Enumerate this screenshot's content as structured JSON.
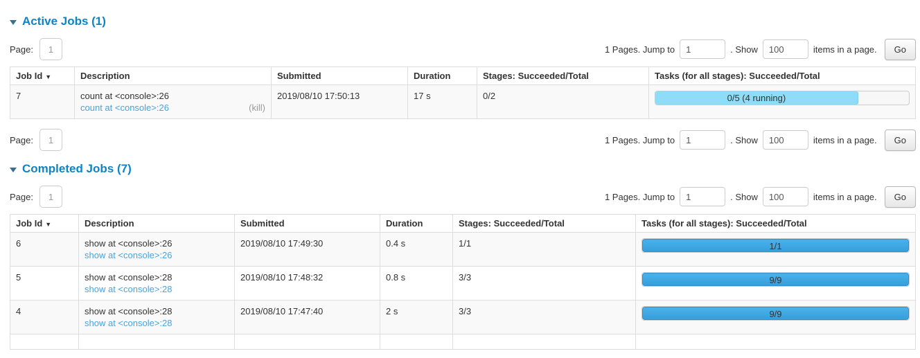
{
  "colors": {
    "section_title_blue": "#0b85c8",
    "link_blue": "#4ba3dc",
    "completed_bar_blue": "#3fa6e0",
    "running_bar_light_blue": "#8edcf7",
    "row_stripe_gray": "#f9f9f9",
    "table_border_gray": "#dddddd"
  },
  "table_headers": {
    "job_id": "Job Id",
    "sort_arrow": "▼",
    "description": "Description",
    "submitted": "Submitted",
    "duration": "Duration",
    "stages": "Stages: Succeeded/Total",
    "tasks": "Tasks (for all stages): Succeeded/Total"
  },
  "pagination": {
    "page_label": "Page:",
    "page_value": "1",
    "info_text": "1 Pages. Jump to",
    "jump_value": "1",
    "show_label": ". Show",
    "show_value": "100",
    "items_label": "items in a page.",
    "go_label": "Go"
  },
  "active": {
    "title": "Active Jobs (1)",
    "row": {
      "job_id": "7",
      "description": "count at <console>:26",
      "description_link": "count at <console>:26",
      "kill_label": "(kill)",
      "submitted": "2019/08/10 17:50:13",
      "duration": "17 s",
      "stages": "0/2",
      "tasks": {
        "label": "0/5 (4 running)",
        "percent": 80
      }
    }
  },
  "completed": {
    "title": "Completed Jobs (7)",
    "rows": [
      {
        "job_id": "6",
        "description": "show at <console>:26",
        "description_link": "show at <console>:26",
        "submitted": "2019/08/10 17:49:30",
        "duration": "0.4 s",
        "stages": "1/1",
        "tasks": {
          "label": "1/1",
          "percent": 100
        }
      },
      {
        "job_id": "5",
        "description": "show at <console>:28",
        "description_link": "show at <console>:28",
        "submitted": "2019/08/10 17:48:32",
        "duration": "0.8 s",
        "stages": "3/3",
        "tasks": {
          "label": "9/9",
          "percent": 100
        }
      },
      {
        "job_id": "4",
        "description": "show at <console>:28",
        "description_link": "show at <console>:28",
        "submitted": "2019/08/10 17:47:40",
        "duration": "2 s",
        "stages": "3/3",
        "tasks": {
          "label": "9/9",
          "percent": 100
        }
      }
    ]
  }
}
